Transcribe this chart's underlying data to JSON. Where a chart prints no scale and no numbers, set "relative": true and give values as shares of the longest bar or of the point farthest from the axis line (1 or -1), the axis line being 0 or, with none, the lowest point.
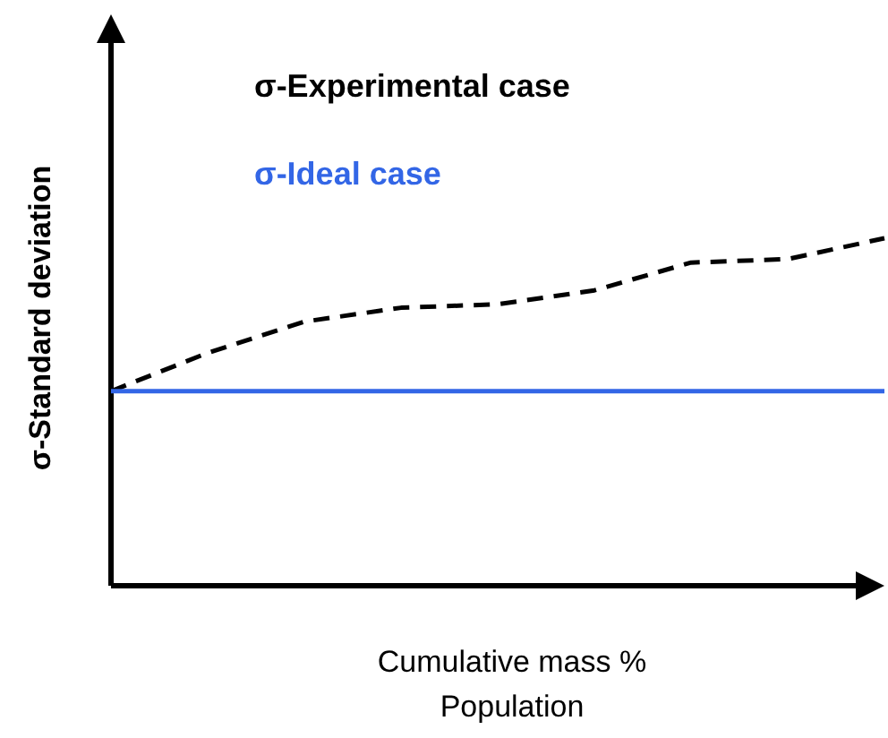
{
  "chart_data": {
    "type": "line",
    "relative": true,
    "xlabel": "Cumulative mass %\nPopulation",
    "ylabel": "σ-Standard deviation",
    "categories": [
      null,
      null,
      null,
      null,
      null,
      null,
      null,
      null,
      null
    ],
    "series": [
      {
        "name": "σ-Experimental case",
        "color": "#000000",
        "line_style": "dashed",
        "values": [
          0.56,
          0.67,
          0.76,
          0.8,
          0.81,
          0.85,
          0.93,
          0.94,
          1.0
        ]
      },
      {
        "name": "σ-Ideal case",
        "color": "#3366e6",
        "line_style": "solid",
        "values": [
          0.56,
          0.56,
          0.56,
          0.56,
          0.56,
          0.56,
          0.56,
          0.56,
          0.56
        ]
      }
    ],
    "legend": "top left",
    "marker": "none",
    "grid": false
  }
}
